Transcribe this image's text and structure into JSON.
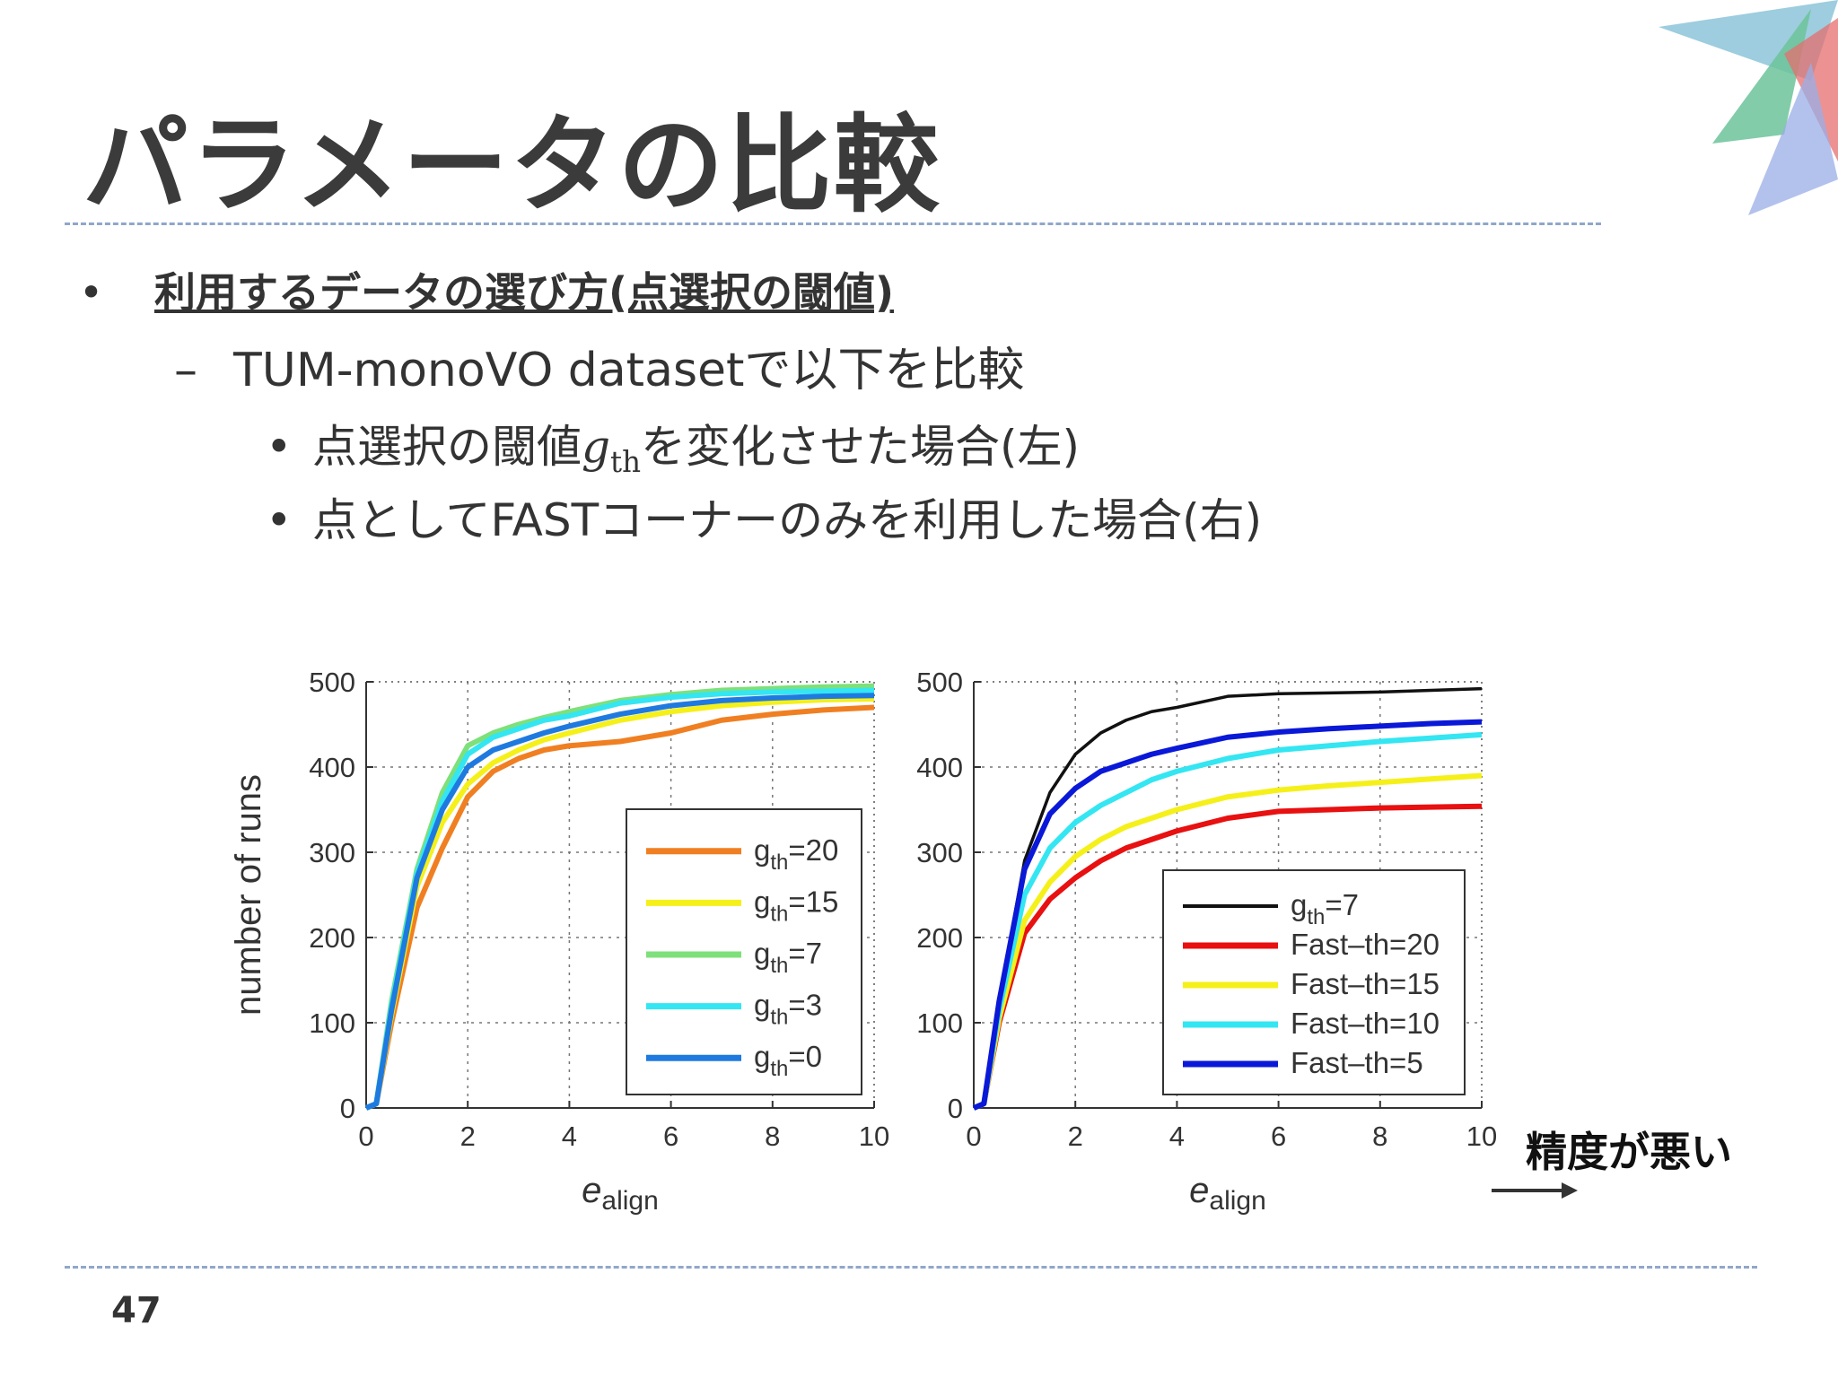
{
  "slide": {
    "title": "パラメータの比較",
    "page_number": "47"
  },
  "bullets": {
    "level1": {
      "mark": "•",
      "text": "利用するデータの選び方(点選択の閾値)"
    },
    "level2": {
      "mark": "–",
      "text": "TUM-monoVO datasetで以下を比較"
    },
    "level3a": {
      "mark": "•",
      "before": "点選択の閾値",
      "math_var": "g",
      "math_sub": "th",
      "after": "を変化させた場合(左)"
    },
    "level3b": {
      "mark": "•",
      "text": "点としてFASTコーナーのみを利用した場合(右)"
    }
  },
  "annotation": {
    "text": "精度が悪い",
    "arrow_icon": "right-arrow-icon"
  },
  "colors": {
    "title": "#3b3b3b",
    "rule": "#8fa7c9",
    "orange": "#f07f22",
    "yellow": "#f5f01a",
    "green": "#7ee07a",
    "cyan": "#33e6f2",
    "blue": "#1f7ae0",
    "black": "#111111",
    "red": "#e81010",
    "dark_blue": "#0a18d8"
  },
  "chart_data": [
    {
      "type": "line",
      "ylabel": "number of runs",
      "xlabel_var": "e",
      "xlabel_sub": "align",
      "xlim": [
        0,
        10
      ],
      "ylim": [
        0,
        500
      ],
      "xticks": [
        0,
        2,
        4,
        6,
        8,
        10
      ],
      "yticks": [
        0,
        100,
        200,
        300,
        400,
        500
      ],
      "grid": true,
      "legend_position": "center-right",
      "series": [
        {
          "var": "g",
          "sub": "th",
          "suffix": "=20",
          "color": "#f07f22",
          "x": [
            0,
            0.2,
            0.5,
            1,
            1.5,
            2,
            2.5,
            3,
            3.5,
            4,
            5,
            6,
            7,
            8,
            9,
            10
          ],
          "y": [
            0,
            5,
            100,
            235,
            305,
            365,
            395,
            410,
            420,
            425,
            430,
            440,
            455,
            462,
            467,
            470
          ]
        },
        {
          "var": "g",
          "sub": "th",
          "suffix": "=15",
          "color": "#f5f01a",
          "x": [
            0,
            0.2,
            0.5,
            1,
            1.5,
            2,
            2.5,
            3,
            3.5,
            4,
            5,
            6,
            7,
            8,
            9,
            10
          ],
          "y": [
            0,
            5,
            110,
            260,
            335,
            380,
            405,
            420,
            432,
            440,
            455,
            465,
            472,
            476,
            479,
            480
          ]
        },
        {
          "var": "g",
          "sub": "th",
          "suffix": "=7",
          "color": "#7ee07a",
          "x": [
            0,
            0.2,
            0.5,
            1,
            1.5,
            2,
            2.5,
            3,
            3.5,
            4,
            5,
            6,
            7,
            8,
            9,
            10
          ],
          "y": [
            0,
            5,
            125,
            280,
            370,
            425,
            440,
            450,
            458,
            465,
            478,
            485,
            490,
            492,
            494,
            495
          ]
        },
        {
          "var": "g",
          "sub": "th",
          "suffix": "=3",
          "color": "#33e6f2",
          "x": [
            0,
            0.2,
            0.5,
            1,
            1.5,
            2,
            2.5,
            3,
            3.5,
            4,
            5,
            6,
            7,
            8,
            9,
            10
          ],
          "y": [
            0,
            5,
            120,
            275,
            360,
            415,
            435,
            445,
            455,
            460,
            475,
            482,
            486,
            488,
            489,
            490
          ]
        },
        {
          "var": "g",
          "sub": "th",
          "suffix": "=0",
          "color": "#1f7ae0",
          "x": [
            0,
            0.2,
            0.5,
            1,
            1.5,
            2,
            2.5,
            3,
            3.5,
            4,
            5,
            6,
            7,
            8,
            9,
            10
          ],
          "y": [
            0,
            5,
            115,
            270,
            350,
            400,
            420,
            430,
            440,
            448,
            462,
            472,
            478,
            481,
            483,
            484
          ]
        }
      ]
    },
    {
      "type": "line",
      "xlabel_var": "e",
      "xlabel_sub": "align",
      "xlim": [
        0,
        10
      ],
      "ylim": [
        0,
        500
      ],
      "xticks": [
        0,
        2,
        4,
        6,
        8,
        10
      ],
      "yticks": [
        0,
        100,
        200,
        300,
        400,
        500
      ],
      "grid": true,
      "legend_position": "lower-right",
      "series": [
        {
          "var": "g",
          "sub": "th",
          "suffix": "=7",
          "color": "#111111",
          "x": [
            0,
            0.2,
            0.5,
            1,
            1.5,
            2,
            2.5,
            3,
            3.5,
            4,
            5,
            6,
            7,
            8,
            9,
            10
          ],
          "y": [
            0,
            5,
            125,
            290,
            370,
            415,
            440,
            455,
            465,
            470,
            483,
            486,
            487,
            488,
            490,
            492
          ]
        },
        {
          "var": "",
          "sub": "",
          "suffix": "Fast–th=20",
          "color": "#e81010",
          "x": [
            0,
            0.2,
            0.5,
            1,
            1.5,
            2,
            2.5,
            3,
            3.5,
            4,
            5,
            6,
            7,
            8,
            9,
            10
          ],
          "y": [
            0,
            5,
            100,
            205,
            245,
            270,
            290,
            305,
            315,
            325,
            340,
            348,
            350,
            352,
            353,
            354
          ]
        },
        {
          "var": "",
          "sub": "",
          "suffix": "Fast–th=15",
          "color": "#f5f01a",
          "x": [
            0,
            0.2,
            0.5,
            1,
            1.5,
            2,
            2.5,
            3,
            3.5,
            4,
            5,
            6,
            7,
            8,
            9,
            10
          ],
          "y": [
            0,
            5,
            105,
            220,
            265,
            295,
            315,
            330,
            340,
            350,
            365,
            373,
            378,
            382,
            386,
            390
          ]
        },
        {
          "var": "",
          "sub": "",
          "suffix": "Fast–th=10",
          "color": "#33e6f2",
          "x": [
            0,
            0.2,
            0.5,
            1,
            1.5,
            2,
            2.5,
            3,
            3.5,
            4,
            5,
            6,
            7,
            8,
            9,
            10
          ],
          "y": [
            0,
            5,
            115,
            250,
            305,
            335,
            355,
            370,
            385,
            395,
            410,
            420,
            425,
            430,
            434,
            438
          ]
        },
        {
          "var": "",
          "sub": "",
          "suffix": "Fast–th=5",
          "color": "#0a18d8",
          "x": [
            0,
            0.2,
            0.5,
            1,
            1.5,
            2,
            2.5,
            3,
            3.5,
            4,
            5,
            6,
            7,
            8,
            9,
            10
          ],
          "y": [
            0,
            5,
            125,
            280,
            345,
            375,
            395,
            405,
            415,
            422,
            435,
            441,
            445,
            448,
            451,
            453
          ]
        }
      ]
    }
  ]
}
